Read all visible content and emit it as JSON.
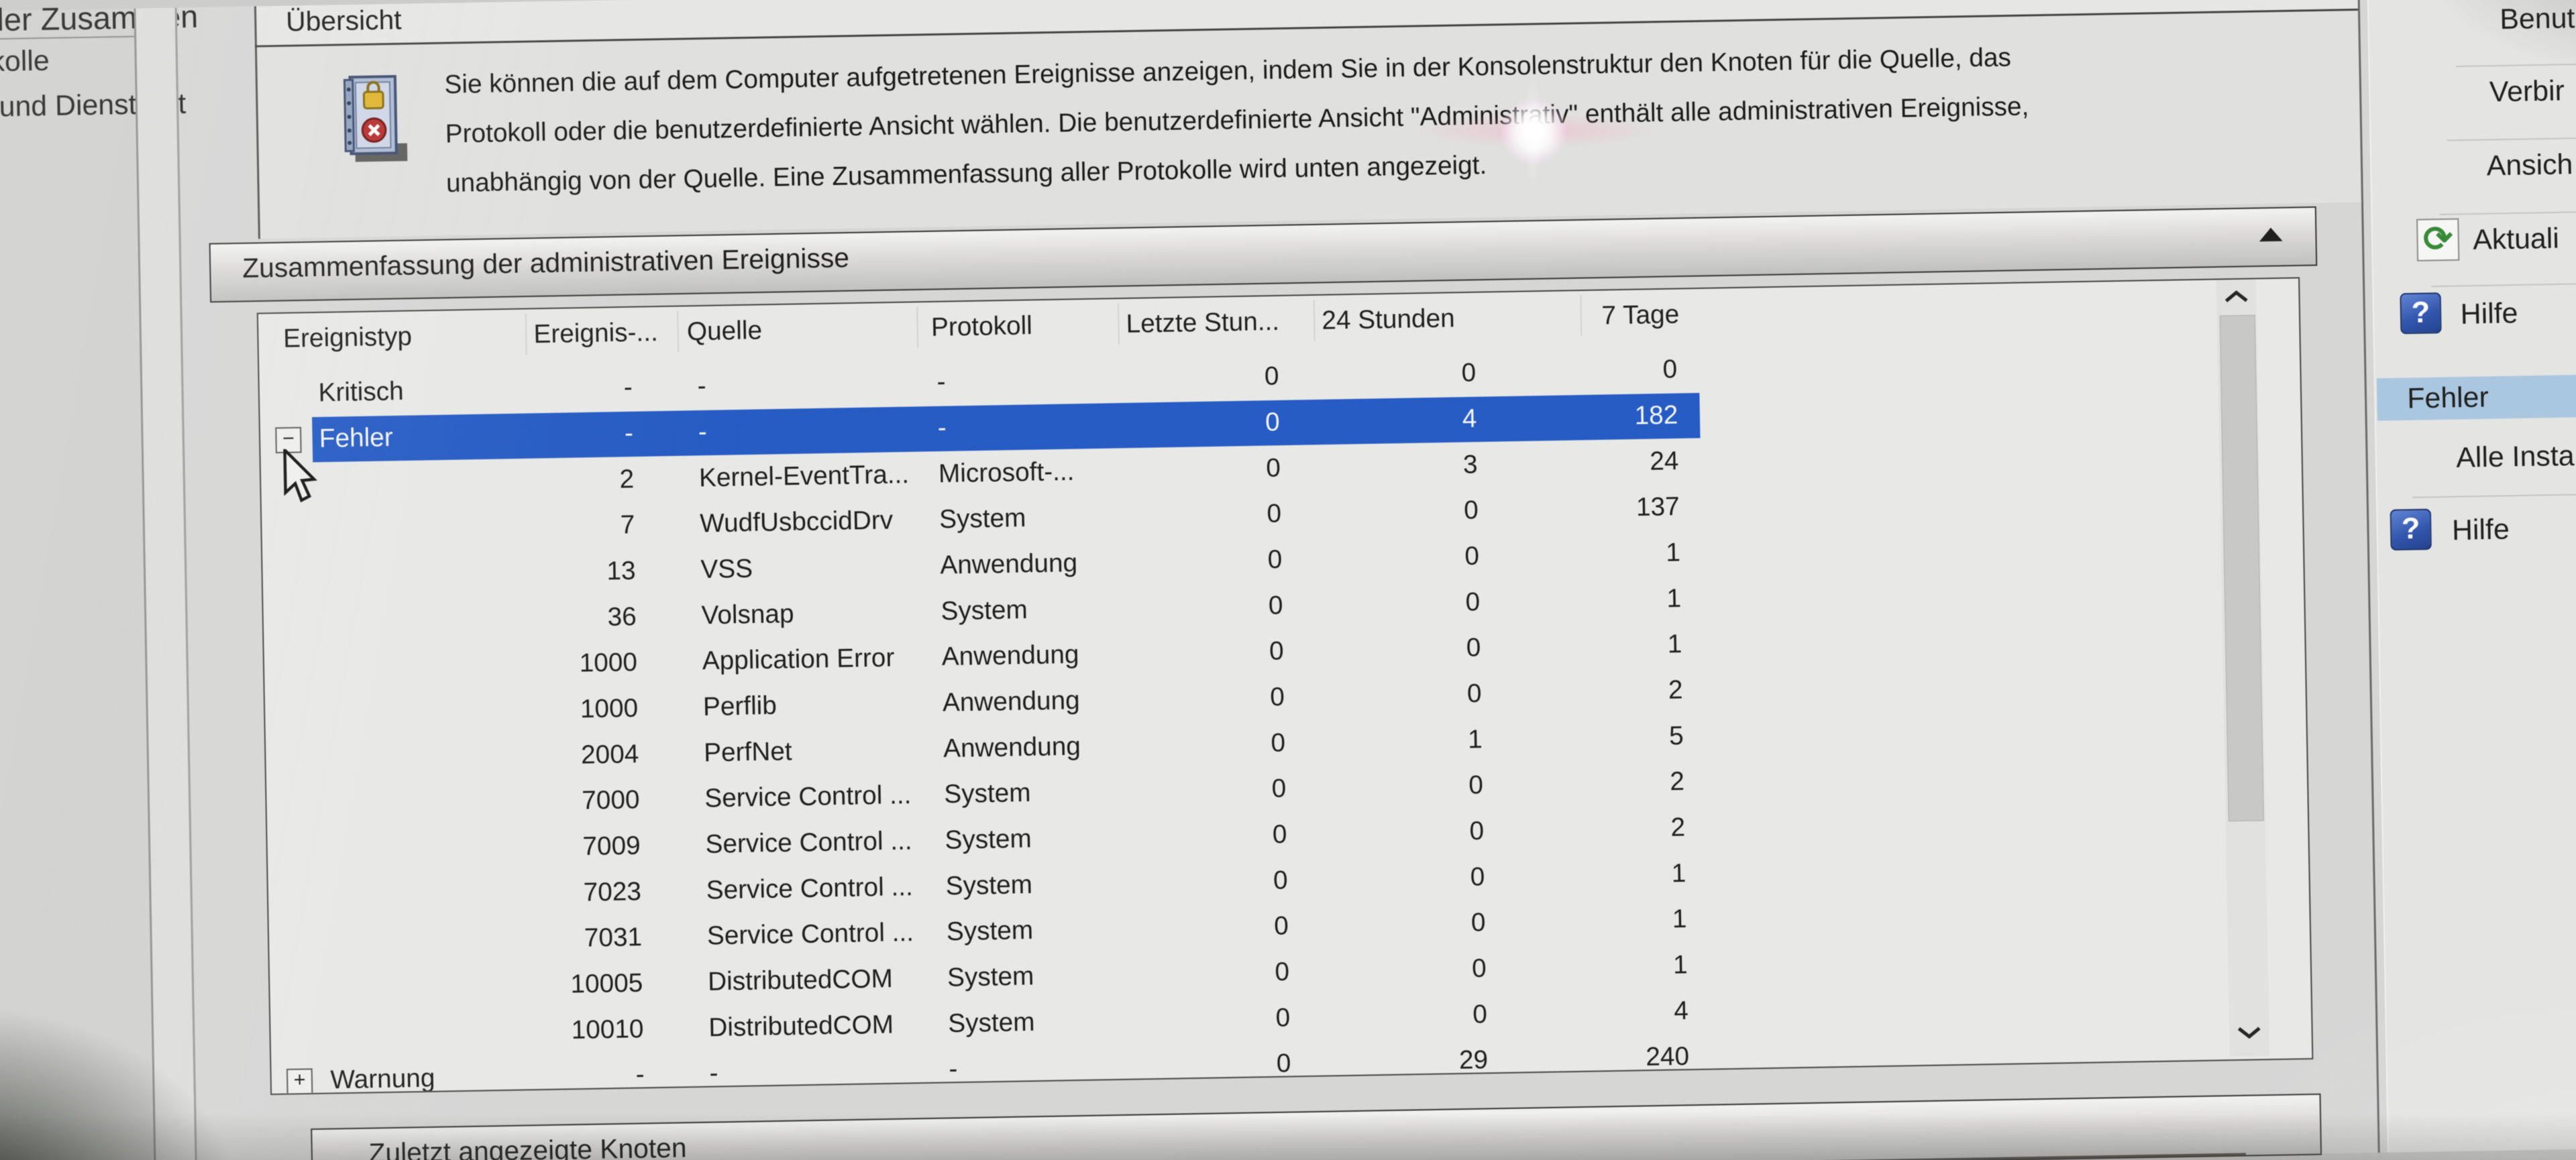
{
  "colors": {
    "selection_blue": "#1d59d2",
    "action_selected_blue": "#a7c9e6",
    "panel_gray": "#d9d9d7"
  },
  "tree": {
    "top_fragment": "e der Zusammen",
    "items": [
      "tokolle",
      "s- und Dienstprot",
      "ts"
    ]
  },
  "overview": {
    "title": "Übersicht",
    "description_lines": [
      "Sie können die auf dem Computer aufgetretenen Ereignisse anzeigen, indem Sie in der Konsolenstruktur den Knoten für die Quelle, das",
      "Protokoll oder die benutzerdefinierte Ansicht wählen. Die benutzerdefinierte Ansicht \"Administrativ\" enthält alle administrativen Ereignisse,",
      "unabhängig von der Quelle. Eine Zusammenfassung aller Protokolle wird unten angezeigt."
    ]
  },
  "summary": {
    "title": "Zusammenfassung der administrativen Ereignisse",
    "table": {
      "columns": [
        "Ereignistyp",
        "Ereignis-...",
        "Quelle",
        "Protokoll",
        "Letzte Stun...",
        "24 Stunden",
        "7 Tage"
      ],
      "rows": [
        {
          "typ": "Kritisch",
          "expander": "",
          "id": "-",
          "quelle": "-",
          "protokoll": "-",
          "letzte": "0",
          "h24": "0",
          "t7": "0",
          "selected": false
        },
        {
          "typ": "Fehler",
          "expander": "−",
          "id": "-",
          "quelle": "-",
          "protokoll": "-",
          "letzte": "0",
          "h24": "4",
          "t7": "182",
          "selected": true
        },
        {
          "typ": "",
          "expander": "",
          "id": "2",
          "quelle": "Kernel-EventTra...",
          "protokoll": "Microsoft-...",
          "letzte": "0",
          "h24": "3",
          "t7": "24",
          "selected": false
        },
        {
          "typ": "",
          "expander": "",
          "id": "7",
          "quelle": "WudfUsbccidDrv",
          "protokoll": "System",
          "letzte": "0",
          "h24": "0",
          "t7": "137",
          "selected": false
        },
        {
          "typ": "",
          "expander": "",
          "id": "13",
          "quelle": "VSS",
          "protokoll": "Anwendung",
          "letzte": "0",
          "h24": "0",
          "t7": "1",
          "selected": false
        },
        {
          "typ": "",
          "expander": "",
          "id": "36",
          "quelle": "Volsnap",
          "protokoll": "System",
          "letzte": "0",
          "h24": "0",
          "t7": "1",
          "selected": false
        },
        {
          "typ": "",
          "expander": "",
          "id": "1000",
          "quelle": "Application Error",
          "protokoll": "Anwendung",
          "letzte": "0",
          "h24": "0",
          "t7": "1",
          "selected": false
        },
        {
          "typ": "",
          "expander": "",
          "id": "1000",
          "quelle": "Perflib",
          "protokoll": "Anwendung",
          "letzte": "0",
          "h24": "0",
          "t7": "2",
          "selected": false
        },
        {
          "typ": "",
          "expander": "",
          "id": "2004",
          "quelle": "PerfNet",
          "protokoll": "Anwendung",
          "letzte": "0",
          "h24": "1",
          "t7": "5",
          "selected": false
        },
        {
          "typ": "",
          "expander": "",
          "id": "7000",
          "quelle": "Service Control ...",
          "protokoll": "System",
          "letzte": "0",
          "h24": "0",
          "t7": "2",
          "selected": false
        },
        {
          "typ": "",
          "expander": "",
          "id": "7009",
          "quelle": "Service Control ...",
          "protokoll": "System",
          "letzte": "0",
          "h24": "0",
          "t7": "2",
          "selected": false
        },
        {
          "typ": "",
          "expander": "",
          "id": "7023",
          "quelle": "Service Control ...",
          "protokoll": "System",
          "letzte": "0",
          "h24": "0",
          "t7": "1",
          "selected": false
        },
        {
          "typ": "",
          "expander": "",
          "id": "7031",
          "quelle": "Service Control ...",
          "protokoll": "System",
          "letzte": "0",
          "h24": "0",
          "t7": "1",
          "selected": false
        },
        {
          "typ": "",
          "expander": "",
          "id": "10005",
          "quelle": "DistributedCOM",
          "protokoll": "System",
          "letzte": "0",
          "h24": "0",
          "t7": "1",
          "selected": false
        },
        {
          "typ": "",
          "expander": "",
          "id": "10010",
          "quelle": "DistributedCOM",
          "protokoll": "System",
          "letzte": "0",
          "h24": "0",
          "t7": "4",
          "selected": false
        },
        {
          "typ": "Warnung",
          "expander": "+",
          "id": "-",
          "quelle": "-",
          "protokoll": "-",
          "letzte": "0",
          "h24": "29",
          "t7": "240",
          "selected": false
        }
      ]
    }
  },
  "recent": {
    "title": "Zuletzt angezeigte Knoten"
  },
  "actions": {
    "items": [
      {
        "label": "Benut",
        "icon": ""
      },
      {
        "label": "Verbir",
        "icon": ""
      },
      {
        "label": "Ansich",
        "icon": ""
      },
      {
        "label": "Aktuali",
        "icon": "refresh-icon"
      },
      {
        "label": "Hilfe",
        "icon": "help-icon"
      },
      {
        "label": "Alle Insta",
        "icon": ""
      },
      {
        "label": "Hilfe",
        "icon": "help-icon"
      }
    ],
    "section_label": "Fehler",
    "help_glyph": "?",
    "refresh_glyph": "⟳"
  }
}
